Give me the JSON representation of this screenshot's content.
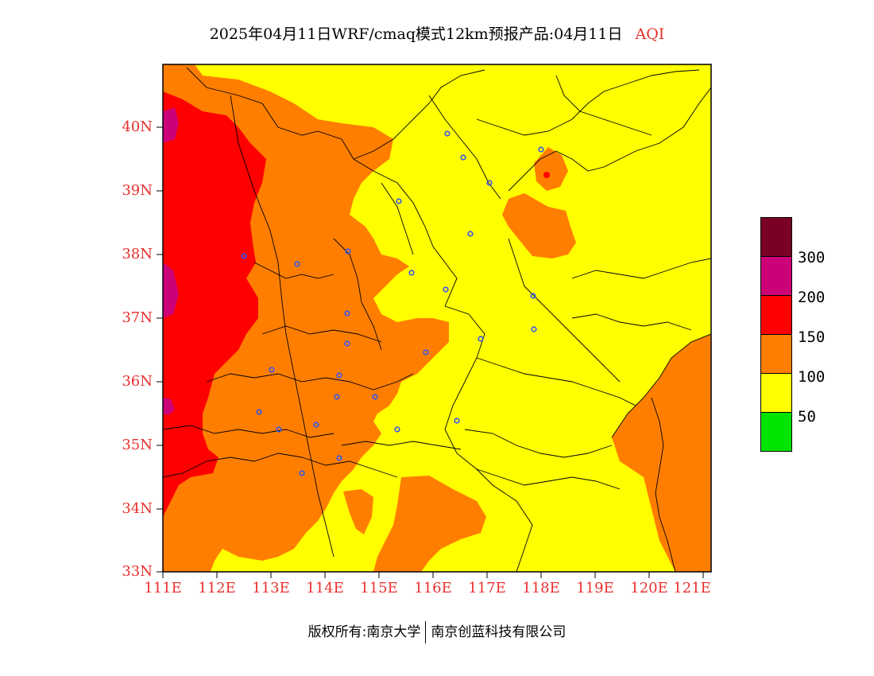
{
  "title": {
    "text": "2025年04月11日WRF/cmaq模式12km预报产品:04月11日",
    "suffix": "AQI"
  },
  "axes": {
    "y_labels": [
      "40N",
      "39N",
      "38N",
      "37N",
      "36N",
      "35N",
      "34N",
      "33N"
    ],
    "x_labels": [
      "111E",
      "112E",
      "113E",
      "114E",
      "115E",
      "116E",
      "117E",
      "118E",
      "119E",
      "120E",
      "121E"
    ]
  },
  "legend": {
    "colors": [
      "#7b0026",
      "#cc0077",
      "#ff0000",
      "#ff7e00",
      "#ffff00",
      "#00e400"
    ],
    "labels": [
      "300",
      "200",
      "150",
      "100",
      "50"
    ]
  },
  "footer": {
    "left": "版权所有:南京大学",
    "right": "南京创蓝科技有限公司"
  }
}
